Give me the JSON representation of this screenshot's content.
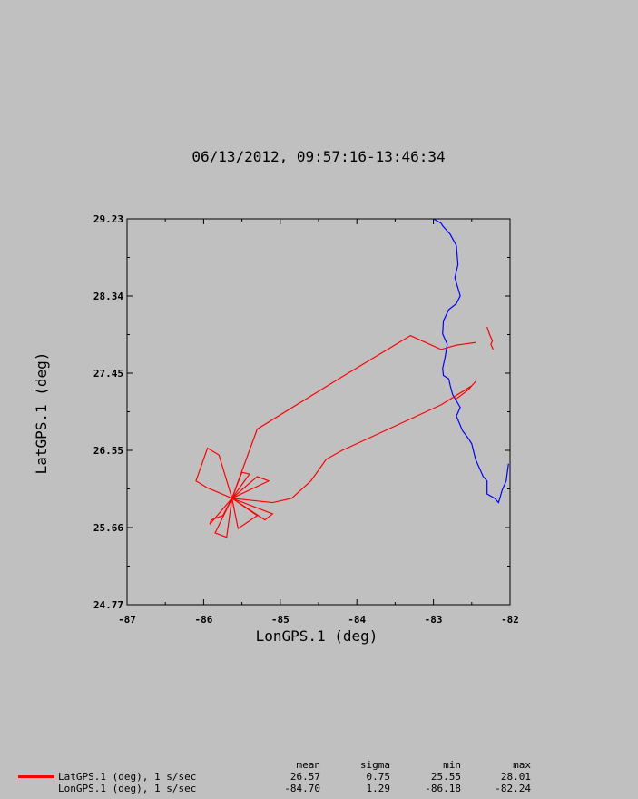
{
  "title": "06/13/2012, 09:57:16-13:46:34",
  "chart_data": {
    "type": "line",
    "xlabel": "LonGPS.1 (deg)",
    "ylabel": "LatGPS.1 (deg)",
    "xlim": [
      -87,
      -82
    ],
    "ylim": [
      24.77,
      29.23
    ],
    "xticks": [
      "-87",
      "-86",
      "-85",
      "-84",
      "-83",
      "-82"
    ],
    "yticks": [
      "24.77",
      "25.66",
      "26.55",
      "27.45",
      "28.34",
      "29.23"
    ],
    "grid": false,
    "series": [
      {
        "name": "LatGPS.1 (deg), 1 s/sec",
        "color": "#ff0000",
        "x": [
          -82.45,
          -82.7,
          -82.9,
          -83.3,
          -84.2,
          -85.3,
          -85.63,
          -85.8,
          -85.95,
          -86.1,
          -85.95,
          -85.63,
          -85.75,
          -85.9,
          -85.92,
          -85.63,
          -85.85,
          -85.7,
          -85.63,
          -85.55,
          -85.3,
          -85.63,
          -85.2,
          -85.1,
          -85.63,
          -85.3,
          -85.15,
          -85.63,
          -85.5,
          -85.4,
          -85.63,
          -85.1,
          -85.0,
          -84.85,
          -84.6,
          -84.4,
          -84.2,
          -82.9,
          -82.5,
          -82.45,
          -82.55,
          -82.7
        ],
        "y": [
          27.8,
          27.77,
          27.72,
          27.88,
          27.4,
          26.8,
          26.0,
          26.5,
          26.58,
          26.2,
          26.12,
          26.0,
          25.8,
          25.75,
          25.7,
          26.0,
          25.6,
          25.55,
          26.0,
          25.65,
          25.8,
          26.0,
          25.75,
          25.82,
          26.0,
          26.25,
          26.2,
          26.0,
          26.3,
          26.28,
          26.0,
          25.95,
          25.97,
          26.0,
          26.2,
          26.45,
          26.55,
          27.08,
          27.3,
          27.35,
          27.25,
          27.15
        ]
      },
      {
        "name": "LonGPS.1 (deg), 1 s/sec",
        "color": "#ff0000",
        "x": [
          -82.3,
          -82.27,
          -82.23,
          -82.25,
          -82.22
        ],
        "y": [
          27.98,
          27.9,
          27.82,
          27.78,
          27.72
        ]
      }
    ],
    "basemap": {
      "name": "coastline",
      "color": "#0000ff",
      "x": [
        -83.0,
        -82.9,
        -82.88,
        -82.78,
        -82.7,
        -82.68,
        -82.72,
        -82.65,
        -82.7,
        -82.8,
        -82.87,
        -82.88,
        -82.82,
        -82.85,
        -82.88,
        -82.87,
        -82.8,
        -82.78,
        -82.75,
        -82.65,
        -82.7,
        -82.62,
        -82.55,
        -82.5,
        -82.45,
        -82.4,
        -82.35,
        -82.3,
        -82.3,
        -82.2,
        -82.15,
        -82.1,
        -82.05,
        -82.02
      ],
      "y": [
        29.23,
        29.18,
        29.15,
        29.05,
        28.92,
        28.7,
        28.55,
        28.34,
        28.25,
        28.18,
        28.05,
        27.9,
        27.78,
        27.62,
        27.5,
        27.42,
        27.38,
        27.3,
        27.2,
        27.05,
        26.95,
        26.78,
        26.7,
        26.63,
        26.45,
        26.35,
        26.25,
        26.2,
        26.05,
        26.0,
        25.95,
        26.1,
        26.2,
        26.4
      ]
    },
    "stats": {
      "headers": [
        "mean",
        "sigma",
        "min",
        "max"
      ],
      "rows": [
        {
          "label": "LatGPS.1 (deg), 1 s/sec",
          "color": "#ff0000",
          "mean": "26.57",
          "sigma": "0.75",
          "min": "25.55",
          "max": "28.01"
        },
        {
          "label": "LonGPS.1 (deg), 1 s/sec",
          "color": "#c0c0c0",
          "mean": "-84.70",
          "sigma": "1.29",
          "min": "-86.18",
          "max": "-82.24"
        }
      ]
    }
  }
}
